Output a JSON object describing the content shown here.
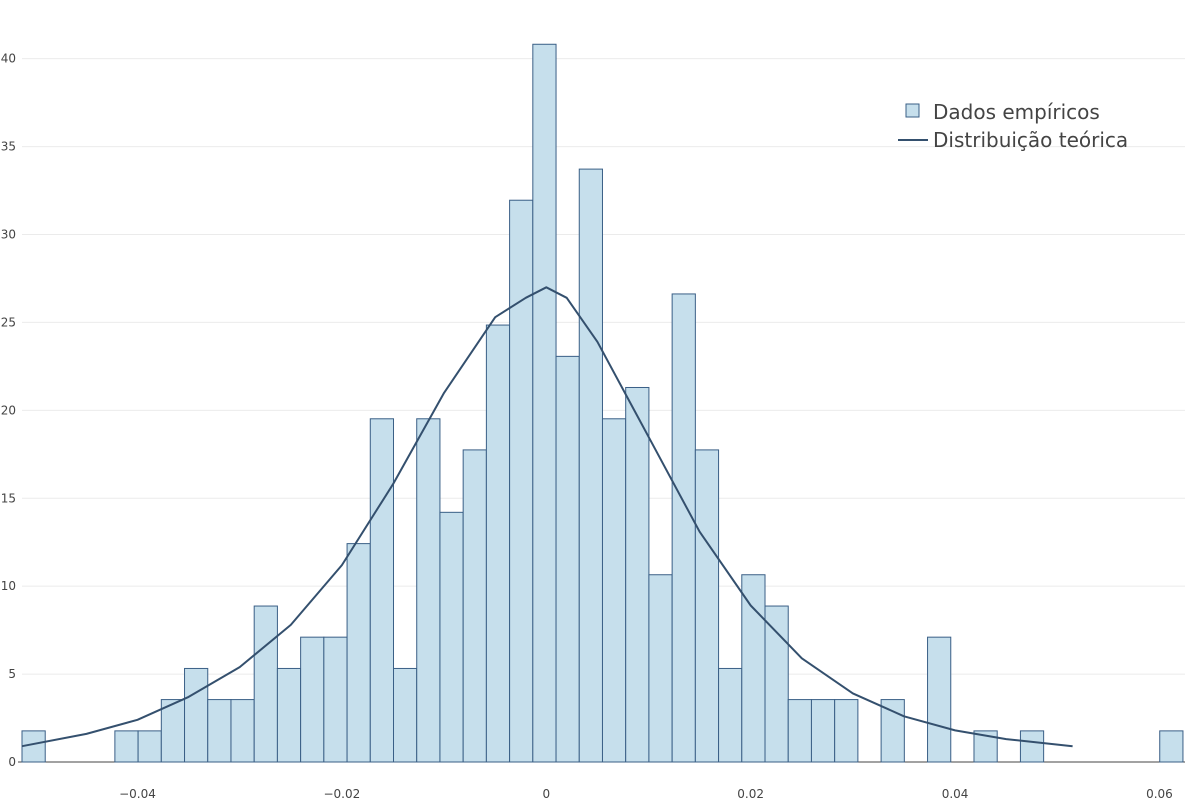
{
  "chart_data": {
    "type": "bar",
    "title": "",
    "xlabel": "",
    "ylabel": "",
    "xlim": [
      -0.0513,
      0.0625
    ],
    "ylim": [
      0,
      42.2
    ],
    "grid": true,
    "legend_position": "top-right",
    "x_ticks": [
      {
        "value": -0.04,
        "label": "−0.04"
      },
      {
        "value": -0.02,
        "label": "−0.02"
      },
      {
        "value": 0,
        "label": "0"
      },
      {
        "value": 0.02,
        "label": "0.02"
      },
      {
        "value": 0.04,
        "label": "0.04"
      },
      {
        "value": 0.06,
        "label": "0.06"
      }
    ],
    "y_ticks": [
      {
        "value": 0,
        "label": "0"
      },
      {
        "value": 5,
        "label": "5"
      },
      {
        "value": 10,
        "label": "10"
      },
      {
        "value": 15,
        "label": "15"
      },
      {
        "value": 20,
        "label": "20"
      },
      {
        "value": 25,
        "label": "25"
      },
      {
        "value": 30,
        "label": "30"
      },
      {
        "value": 35,
        "label": "35"
      },
      {
        "value": 40,
        "label": "40"
      }
    ],
    "bin_start": -0.0513,
    "bin_width": 0.002272,
    "series": [
      {
        "name": "Dados empíricos",
        "type": "bar",
        "color": "#c6dfec",
        "edge_color": "#3a5f86",
        "values": [
          1.77,
          0,
          0,
          0,
          1.77,
          1.77,
          3.55,
          5.32,
          3.55,
          3.55,
          8.87,
          5.32,
          7.1,
          7.1,
          12.42,
          19.52,
          5.32,
          19.52,
          14.2,
          17.75,
          24.85,
          31.95,
          40.82,
          23.07,
          33.72,
          19.52,
          21.3,
          10.65,
          26.62,
          17.75,
          5.32,
          10.65,
          8.87,
          3.55,
          3.55,
          3.55,
          0,
          3.55,
          0,
          7.1,
          0,
          1.77,
          0,
          1.77,
          0,
          0,
          0,
          0,
          0,
          1.77
        ]
      },
      {
        "name": "Distribuição teórica",
        "type": "line",
        "color": "#34506e",
        "x": [
          -0.0513,
          -0.045,
          -0.04,
          -0.035,
          -0.03,
          -0.025,
          -0.02,
          -0.015,
          -0.01,
          -0.005,
          -0.002,
          0,
          0.002,
          0.005,
          0.01,
          0.015,
          0.02,
          0.025,
          0.03,
          0.035,
          0.04,
          0.045,
          0.0515
        ],
        "y": [
          0.9,
          1.6,
          2.4,
          3.7,
          5.4,
          7.8,
          11.2,
          15.8,
          21.0,
          25.3,
          26.4,
          27.0,
          26.4,
          23.9,
          18.5,
          13.1,
          8.9,
          5.9,
          3.9,
          2.6,
          1.8,
          1.3,
          0.9
        ]
      }
    ]
  }
}
